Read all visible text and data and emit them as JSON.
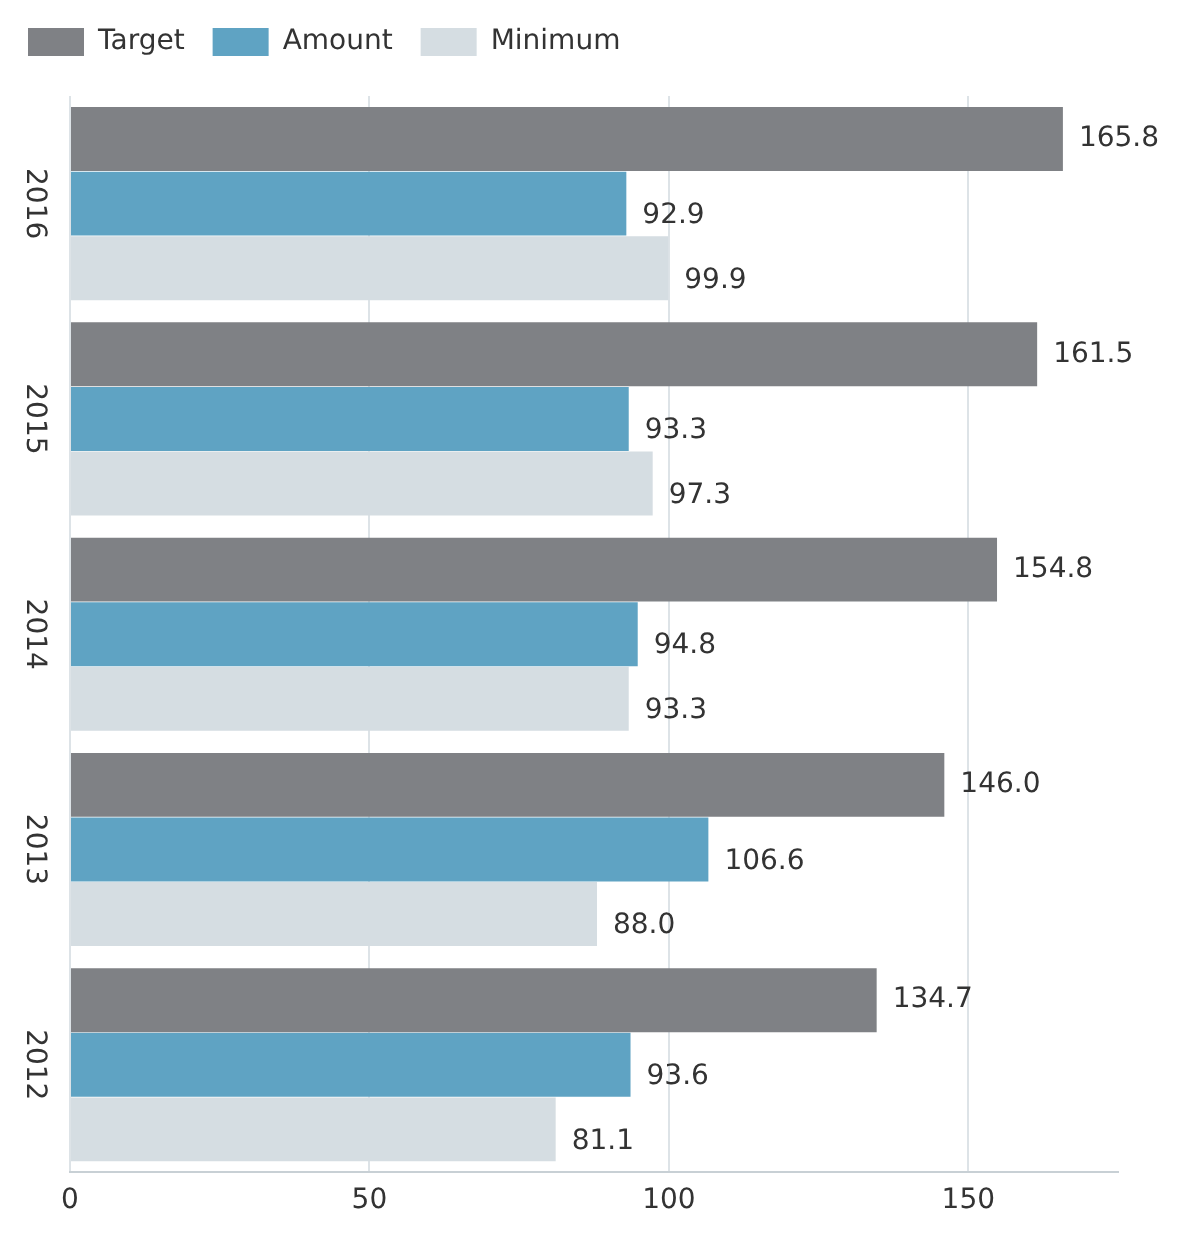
{
  "chart_data": {
    "type": "bar",
    "orientation": "horizontal",
    "categories": [
      "2016",
      "2015",
      "2014",
      "2013",
      "2012"
    ],
    "series": [
      {
        "name": "Target",
        "color": "#7f8185",
        "values": [
          165.8,
          161.5,
          154.8,
          146.0,
          134.7
        ],
        "value_labels": [
          "165.8",
          "161.5",
          "154.8",
          "146.0",
          "134.7"
        ]
      },
      {
        "name": "Amount",
        "color": "#5fa3c3",
        "values": [
          92.9,
          93.3,
          94.8,
          106.6,
          93.6
        ],
        "value_labels": [
          "92.9",
          "93.3",
          "94.8",
          "106.6",
          "93.6"
        ]
      },
      {
        "name": "Minimum",
        "color": "#d5dde2",
        "values": [
          99.9,
          97.3,
          93.3,
          88.0,
          81.1
        ],
        "value_labels": [
          "99.9",
          "97.3",
          "93.3",
          "88.0",
          "81.1"
        ]
      }
    ],
    "xlim": [
      0,
      175
    ],
    "xticks": [
      0,
      50,
      100,
      150
    ],
    "grid": "x",
    "legend": "top left"
  }
}
